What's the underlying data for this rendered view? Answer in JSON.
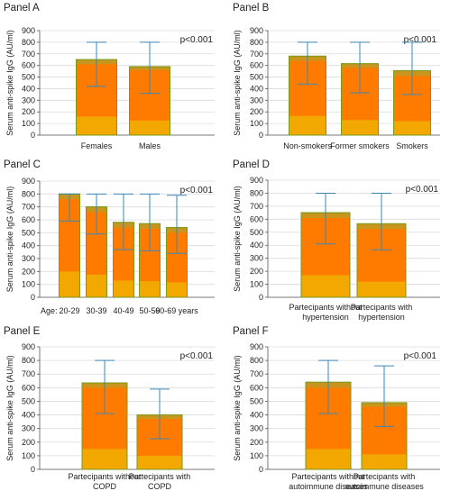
{
  "colors": {
    "bar_main": "#ff7b00",
    "bar_top": "#c8961e",
    "bar_bottom": "#f2a800",
    "bar_outline": "#7a9a1a",
    "whisker": "#3a87b8",
    "grid": "#dcdcdc",
    "axis": "#555555"
  },
  "chart_data": [
    {
      "panel": "Panel A",
      "type": "bar",
      "p_value": "p<0.001",
      "ylabel": "Serum anti-spike IgG (AU/ml)",
      "ylim": [
        0,
        900
      ],
      "yticks": [
        "0",
        "100",
        "200",
        "300",
        "400",
        "500",
        "600",
        "700",
        "800",
        "900"
      ],
      "categories": [
        [
          "Females"
        ],
        [
          "Males"
        ]
      ],
      "values": [
        650,
        590
      ],
      "q1": [
        160,
        125
      ],
      "iqr_upper": [
        610,
        560
      ],
      "whisker_low": [
        420,
        360
      ],
      "whisker_high": [
        800,
        800
      ]
    },
    {
      "panel": "Panel B",
      "type": "bar",
      "p_value": "p<0.001",
      "ylabel": "Serum anti-spike IgG (AU/ml)",
      "ylim": [
        0,
        900
      ],
      "yticks": [
        "0",
        "100",
        "200",
        "300",
        "400",
        "500",
        "600",
        "700",
        "800",
        "900"
      ],
      "categories": [
        [
          "Non-smokers"
        ],
        [
          "Former smokers"
        ],
        [
          "Smokers"
        ]
      ],
      "values": [
        680,
        615,
        555
      ],
      "q1": [
        165,
        130,
        120
      ],
      "iqr_upper": [
        640,
        580,
        510
      ],
      "whisker_low": [
        440,
        365,
        350
      ],
      "whisker_high": [
        800,
        800,
        800
      ]
    },
    {
      "panel": "Panel C",
      "type": "bar",
      "p_value": "p<0.001",
      "ylabel": "Serum anti-spike IgG (AU/ml)",
      "ylim": [
        0,
        900
      ],
      "yticks": [
        "0",
        "100",
        "200",
        "300",
        "400",
        "500",
        "600",
        "700",
        "800",
        "900"
      ],
      "category_prefix": "Age:",
      "categories": [
        [
          "20-29"
        ],
        [
          "30-39"
        ],
        [
          "40-49"
        ],
        [
          "50-59"
        ],
        [
          "60-69 years"
        ]
      ],
      "values": [
        800,
        700,
        580,
        570,
        540
      ],
      "q1": [
        200,
        175,
        130,
        125,
        115
      ],
      "iqr_upper": [
        760,
        660,
        540,
        530,
        500
      ],
      "whisker_low": [
        590,
        490,
        370,
        360,
        340
      ],
      "whisker_high": [
        800,
        800,
        800,
        800,
        790
      ]
    },
    {
      "panel": "Panel D",
      "type": "bar",
      "p_value": "p<0.001",
      "ylabel": "Serum anti-spike IgG (AU/ml)",
      "ylim": [
        0,
        900
      ],
      "yticks": [
        "0",
        "100",
        "200",
        "300",
        "400",
        "500",
        "600",
        "700",
        "800",
        "900"
      ],
      "categories": [
        [
          "Partecipants without",
          "hypertension"
        ],
        [
          "Partecipants with",
          "hypertension"
        ]
      ],
      "values": [
        650,
        565
      ],
      "q1": [
        170,
        120
      ],
      "iqr_upper": [
        610,
        525
      ],
      "whisker_low": [
        410,
        365
      ],
      "whisker_high": [
        800,
        800
      ]
    },
    {
      "panel": "Panel E",
      "type": "bar",
      "p_value": "p<0.001",
      "ylabel": "Serum anti-spike IgG (AU/ml)",
      "ylim": [
        0,
        900
      ],
      "yticks": [
        "0",
        "100",
        "200",
        "300",
        "400",
        "500",
        "600",
        "700",
        "800",
        "900"
      ],
      "categories": [
        [
          "Partecipants without",
          "COPD"
        ],
        [
          "Partecipants with",
          "COPD"
        ]
      ],
      "values": [
        635,
        400
      ],
      "q1": [
        150,
        100
      ],
      "iqr_upper": [
        600,
        370
      ],
      "whisker_low": [
        410,
        225
      ],
      "whisker_high": [
        800,
        590
      ]
    },
    {
      "panel": "Panel F",
      "type": "bar",
      "p_value": "p<0.001",
      "ylabel": "Serum anti-spike IgG (AU/ml)",
      "ylim": [
        0,
        900
      ],
      "yticks": [
        "0",
        "100",
        "200",
        "300",
        "400",
        "500",
        "600",
        "700",
        "800",
        "900"
      ],
      "categories": [
        [
          "Partecipants without",
          "autoimmune diseases"
        ],
        [
          "Partecipants with",
          "autoimmune diseases"
        ]
      ],
      "values": [
        640,
        490
      ],
      "q1": [
        150,
        110
      ],
      "iqr_upper": [
        600,
        460
      ],
      "whisker_low": [
        410,
        315
      ],
      "whisker_high": [
        800,
        760
      ]
    }
  ]
}
